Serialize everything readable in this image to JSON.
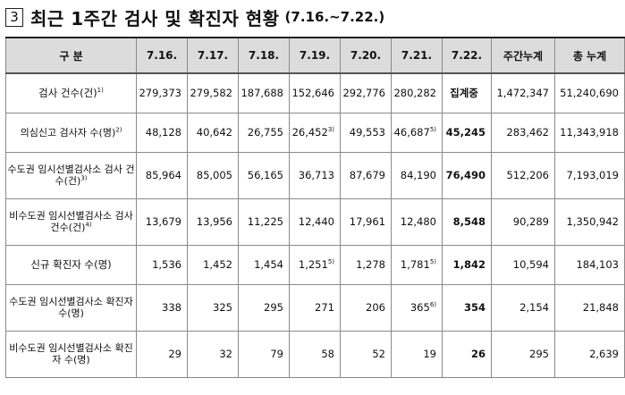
{
  "title": {
    "number": "3",
    "text": "최근 1주간 검사 및 확진자 현황",
    "range": "(7.16.~7.22.)"
  },
  "header": {
    "category": "구  분",
    "dates": [
      "7.16.",
      "7.17.",
      "7.18.",
      "7.19.",
      "7.20.",
      "7.21.",
      "7.22."
    ],
    "weekly_total": "주간누계",
    "total": "총 누계"
  },
  "rows": [
    {
      "label": "검사 건수(건)",
      "sup": "1)",
      "values": [
        "279,373",
        "279,582",
        "187,688",
        "152,646",
        "292,776",
        "280,282",
        "집계중"
      ],
      "value_sups": [
        "",
        "",
        "",
        "",
        "",
        "",
        ""
      ],
      "weekly_total": "1,472,347",
      "total": "51,240,690"
    },
    {
      "label": "의심신고 검사자 수(명)",
      "sup": "2)",
      "values": [
        "48,128",
        "40,642",
        "26,755",
        "26,452",
        "49,553",
        "46,687",
        "45,245"
      ],
      "value_sups": [
        "",
        "",
        "",
        "3)",
        "",
        "5)",
        ""
      ],
      "weekly_total": "283,462",
      "total": "11,343,918"
    },
    {
      "label": "수도권 임시선별검사소 검사 건수(건)",
      "sup": "3)",
      "values": [
        "85,964",
        "85,005",
        "56,165",
        "36,713",
        "87,679",
        "84,190",
        "76,490"
      ],
      "value_sups": [
        "",
        "",
        "",
        "",
        "",
        "",
        ""
      ],
      "weekly_total": "512,206",
      "total": "7,193,019"
    },
    {
      "label": "비수도권 임시선별검사소 검사 건수(건)",
      "sup": "4)",
      "values": [
        "13,679",
        "13,956",
        "11,225",
        "12,440",
        "17,961",
        "12,480",
        "8,548"
      ],
      "value_sups": [
        "",
        "",
        "",
        "",
        "",
        "",
        ""
      ],
      "weekly_total": "90,289",
      "total": "1,350,942"
    },
    {
      "label": "신규 확진자 수(명)",
      "sup": "",
      "values": [
        "1,536",
        "1,452",
        "1,454",
        "1,251",
        "1,278",
        "1,781",
        "1,842"
      ],
      "value_sups": [
        "",
        "",
        "",
        "5)",
        "",
        "5)",
        ""
      ],
      "weekly_total": "10,594",
      "total": "184,103"
    },
    {
      "label": "수도권 임시선별검사소 확진자 수(명)",
      "sup": "",
      "values": [
        "338",
        "325",
        "295",
        "271",
        "206",
        "365",
        "354"
      ],
      "value_sups": [
        "",
        "",
        "",
        "",
        "",
        "6)",
        ""
      ],
      "weekly_total": "2,154",
      "total": "21,848"
    },
    {
      "label": "비수도권 임시선별검사소 확진자 수(명)",
      "sup": "",
      "values": [
        "29",
        "32",
        "79",
        "58",
        "52",
        "19",
        "26"
      ],
      "value_sups": [
        "",
        "",
        "",
        "",
        "",
        "",
        ""
      ],
      "weekly_total": "295",
      "total": "2,639"
    }
  ]
}
